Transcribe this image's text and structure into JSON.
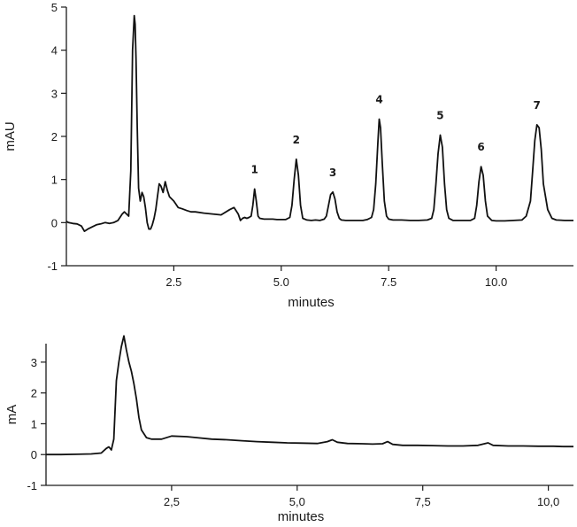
{
  "chart_data": [
    {
      "type": "line",
      "xlabel": "minutes",
      "ylabel": "mAU",
      "xlim": [
        0,
        11.8
      ],
      "ylim": [
        -1,
        5
      ],
      "x_ticks": [
        2.5,
        5.0,
        7.5,
        10.0
      ],
      "x_tick_labels": [
        "2.5",
        "5.0",
        "7.5",
        "10.0"
      ],
      "y_ticks": [
        -1,
        0,
        1,
        2,
        3,
        4,
        5
      ],
      "y_tick_labels": [
        "-1",
        "0",
        "1",
        "2",
        "3",
        "4",
        "5"
      ],
      "peaks": [
        {
          "label": "1",
          "x": 4.38,
          "y": 0.78
        },
        {
          "label": "2",
          "x": 5.35,
          "y": 1.47
        },
        {
          "label": "3",
          "x": 6.2,
          "y": 0.71
        },
        {
          "label": "4",
          "x": 7.28,
          "y": 2.4
        },
        {
          "label": "5",
          "x": 8.7,
          "y": 2.03
        },
        {
          "label": "6",
          "x": 9.65,
          "y": 1.3
        },
        {
          "label": "7",
          "x": 10.95,
          "y": 2.27
        }
      ],
      "series": [
        {
          "x": [
            0,
            0.05,
            0.15,
            0.25,
            0.35,
            0.42,
            0.5,
            0.6,
            0.7,
            0.8,
            0.9,
            1.0,
            1.1,
            1.2,
            1.3,
            1.35,
            1.4,
            1.45,
            1.5,
            1.54,
            1.58,
            1.6,
            1.62,
            1.65,
            1.68,
            1.72,
            1.76,
            1.8,
            1.84,
            1.88,
            1.92,
            1.96,
            2.0,
            2.04,
            2.08,
            2.12,
            2.16,
            2.2,
            2.25,
            2.3,
            2.35,
            2.4,
            2.5,
            2.6,
            2.7,
            2.8,
            2.9,
            3.0,
            3.2,
            3.4,
            3.6,
            3.8,
            3.9,
            4.0,
            4.05,
            4.1,
            4.15,
            4.2,
            4.25,
            4.3,
            4.34,
            4.38,
            4.42,
            4.46,
            4.5,
            4.6,
            4.7,
            4.8,
            4.9,
            5.0,
            5.1,
            5.2,
            5.25,
            5.3,
            5.35,
            5.4,
            5.45,
            5.5,
            5.6,
            5.7,
            5.8,
            5.9,
            6.0,
            6.05,
            6.1,
            6.15,
            6.2,
            6.25,
            6.3,
            6.35,
            6.4,
            6.5,
            6.6,
            6.7,
            6.8,
            6.9,
            7.0,
            7.1,
            7.15,
            7.2,
            7.25,
            7.28,
            7.31,
            7.35,
            7.4,
            7.45,
            7.5,
            7.6,
            7.8,
            8.0,
            8.2,
            8.4,
            8.5,
            8.55,
            8.6,
            8.65,
            8.7,
            8.75,
            8.8,
            8.85,
            8.9,
            9.0,
            9.2,
            9.4,
            9.5,
            9.55,
            9.6,
            9.65,
            9.7,
            9.75,
            9.8,
            9.9,
            10.0,
            10.2,
            10.4,
            10.6,
            10.7,
            10.8,
            10.85,
            10.9,
            10.95,
            11.0,
            11.05,
            11.1,
            11.2,
            11.3,
            11.4,
            11.6,
            11.8
          ],
          "y": [
            0.03,
            0.0,
            -0.02,
            -0.03,
            -0.08,
            -0.2,
            -0.15,
            -0.1,
            -0.05,
            -0.03,
            0.0,
            -0.02,
            0.0,
            0.05,
            0.2,
            0.25,
            0.2,
            0.15,
            1.2,
            4.0,
            4.8,
            4.6,
            3.8,
            2.2,
            0.8,
            0.5,
            0.7,
            0.6,
            0.35,
            0.0,
            -0.15,
            -0.15,
            -0.05,
            0.1,
            0.3,
            0.6,
            0.9,
            0.85,
            0.7,
            0.95,
            0.75,
            0.6,
            0.5,
            0.35,
            0.32,
            0.28,
            0.25,
            0.25,
            0.22,
            0.2,
            0.18,
            0.3,
            0.35,
            0.2,
            0.05,
            0.1,
            0.12,
            0.1,
            0.12,
            0.15,
            0.4,
            0.78,
            0.5,
            0.15,
            0.1,
            0.08,
            0.08,
            0.08,
            0.07,
            0.07,
            0.07,
            0.12,
            0.4,
            1.0,
            1.47,
            1.1,
            0.4,
            0.1,
            0.06,
            0.05,
            0.06,
            0.05,
            0.08,
            0.15,
            0.4,
            0.65,
            0.71,
            0.55,
            0.25,
            0.1,
            0.06,
            0.05,
            0.05,
            0.05,
            0.05,
            0.05,
            0.07,
            0.12,
            0.3,
            0.9,
            1.9,
            2.4,
            2.2,
            1.4,
            0.5,
            0.15,
            0.08,
            0.06,
            0.06,
            0.05,
            0.05,
            0.06,
            0.1,
            0.3,
            0.9,
            1.6,
            2.03,
            1.75,
            0.9,
            0.3,
            0.1,
            0.05,
            0.05,
            0.05,
            0.1,
            0.4,
            0.95,
            1.3,
            1.1,
            0.5,
            0.15,
            0.05,
            0.04,
            0.04,
            0.05,
            0.06,
            0.15,
            0.5,
            1.2,
            1.9,
            2.27,
            2.2,
            1.7,
            0.9,
            0.3,
            0.1,
            0.06,
            0.05,
            0.05
          ]
        }
      ]
    },
    {
      "type": "line",
      "xlabel": "minutes",
      "ylabel": "mA",
      "xlim": [
        0,
        10.5
      ],
      "ylim": [
        -1,
        3.6
      ],
      "x_ticks": [
        2.5,
        5.0,
        7.5,
        10.0
      ],
      "x_tick_labels": [
        "2,5",
        "5,0",
        "7,5",
        "10,0"
      ],
      "y_ticks": [
        -1,
        0,
        1,
        2,
        3
      ],
      "y_tick_labels": [
        "-1",
        "0",
        "1",
        "2",
        "3"
      ],
      "series": [
        {
          "x": [
            0,
            0.3,
            0.6,
            0.9,
            1.1,
            1.2,
            1.25,
            1.3,
            1.35,
            1.4,
            1.45,
            1.5,
            1.55,
            1.6,
            1.65,
            1.7,
            1.75,
            1.8,
            1.85,
            1.9,
            2.0,
            2.1,
            2.3,
            2.5,
            2.8,
            3.0,
            3.3,
            3.6,
            3.9,
            4.2,
            4.5,
            4.8,
            5.1,
            5.4,
            5.6,
            5.7,
            5.8,
            6.0,
            6.3,
            6.5,
            6.7,
            6.8,
            6.9,
            7.1,
            7.4,
            7.7,
            8.0,
            8.3,
            8.6,
            8.8,
            8.9,
            9.2,
            9.5,
            9.8,
            10.1,
            10.3,
            10.5
          ],
          "y": [
            0.0,
            0.0,
            0.01,
            0.02,
            0.05,
            0.2,
            0.25,
            0.15,
            0.5,
            2.4,
            3.0,
            3.5,
            3.85,
            3.4,
            3.0,
            2.7,
            2.3,
            1.8,
            1.2,
            0.8,
            0.55,
            0.5,
            0.5,
            0.6,
            0.58,
            0.55,
            0.5,
            0.48,
            0.45,
            0.42,
            0.4,
            0.38,
            0.37,
            0.36,
            0.42,
            0.48,
            0.4,
            0.36,
            0.35,
            0.34,
            0.35,
            0.42,
            0.33,
            0.3,
            0.3,
            0.29,
            0.28,
            0.28,
            0.3,
            0.38,
            0.3,
            0.28,
            0.28,
            0.27,
            0.27,
            0.26,
            0.26
          ]
        }
      ]
    }
  ]
}
